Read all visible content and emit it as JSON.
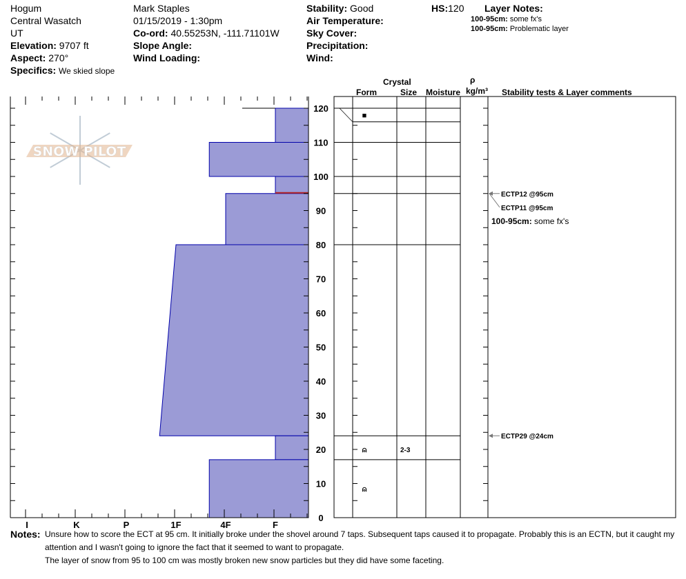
{
  "header": {
    "location": "Hogum",
    "range": "Central Wasatch",
    "state": "UT",
    "elevation_label": "Elevation:",
    "elevation": "9707 ft",
    "aspect_label": "Aspect:",
    "aspect": "270°",
    "specifics_label": "Specifics:",
    "specifics": "We skied slope",
    "observer": "Mark Staples",
    "datetime": "01/15/2019 - 1:30pm",
    "coord_label": "Co-ord:",
    "coord": "40.55253N, -111.71101W",
    "slope_label": "Slope Angle:",
    "wind_loading_label": "Wind Loading:",
    "stability_label": "Stability:",
    "stability": "Good",
    "air_temp_label": "Air Temperature:",
    "sky_label": "Sky Cover:",
    "precip_label": "Precipitation:",
    "wind_label": "Wind:",
    "hs_label": "HS:",
    "hs": "120",
    "layer_notes_label": "Layer Notes:",
    "layer_notes": [
      {
        "range": "100-95cm:",
        "text": "some fx's"
      },
      {
        "range": "100-95cm:",
        "text": "Problematic layer"
      }
    ]
  },
  "logo_text": "SNOW PILOT",
  "columns": {
    "crystal": "Crystal",
    "form": "Form",
    "size": "Size",
    "moisture": "Moisture",
    "rho": "ρ",
    "density_unit": "kg/m³",
    "comments": "Stability tests & Layer comments"
  },
  "chart_data": {
    "type": "snow-profile",
    "depth_axis": {
      "range": [
        0,
        120
      ],
      "ticks": [
        "0",
        "10",
        "20",
        "30",
        "40",
        "50",
        "60",
        "70",
        "80",
        "90",
        "100",
        "110",
        "120"
      ]
    },
    "hardness_axis": {
      "labels": [
        "I",
        "K",
        "P",
        "1F",
        "4F",
        "F"
      ],
      "index": [
        6,
        5,
        4,
        3,
        2,
        1
      ]
    },
    "layers": [
      {
        "top": 120,
        "bottom": 110,
        "hardness_top": 1,
        "hardness_bottom": 1
      },
      {
        "top": 110,
        "bottom": 100,
        "hardness_top": 2.33,
        "hardness_bottom": 2.33
      },
      {
        "top": 100,
        "bottom": 95,
        "hardness_top": 1,
        "hardness_bottom": 1
      },
      {
        "top": 95,
        "bottom": 80,
        "hardness_top": 2,
        "hardness_bottom": 2
      },
      {
        "top": 80,
        "bottom": 24,
        "hardness_top": 3.0,
        "hardness_bottom": 3.33
      },
      {
        "top": 24,
        "bottom": 17,
        "hardness_top": 1,
        "hardness_bottom": 1
      },
      {
        "top": 17,
        "bottom": 0,
        "hardness_top": 2.33,
        "hardness_bottom": 2.33
      }
    ],
    "critical_layer_depth": 95,
    "form_lines": [
      120,
      116,
      110,
      100,
      95,
      80,
      24,
      17
    ],
    "grain_forms": [
      {
        "depth": 118,
        "symbol": "■",
        "size": ""
      },
      {
        "depth": 20,
        "symbol": "⍝",
        "size": "2-3"
      },
      {
        "depth": 8.5,
        "symbol": "⍝",
        "size": ""
      }
    ],
    "tests": [
      {
        "depth": 95,
        "label": "ECTP12 @95cm",
        "offset": 0
      },
      {
        "depth": 95,
        "label": "ECTP11 @95cm",
        "offset": 1
      },
      {
        "depth": 24,
        "label": "ECTP29 @24cm",
        "offset": 0
      }
    ],
    "layer_comment": {
      "range": "100-95cm:",
      "text": "some fx's"
    }
  },
  "notes": {
    "label": "Notes:",
    "lines": [
      "Unsure how to score the ECT at 95 cm. It initially broke under the shovel around 7 taps. Subsequent taps caused it to propagate. Probably this is an ECTN, but it caught my",
      "attention and I wasn't going to ignore the fact that it seemed to want to propagate.",
      "The layer of snow from 95 to 100 cm was mostly broken new snow particles but they did have some faceting."
    ]
  },
  "colors": {
    "bar_fill": "#9b9bd6",
    "bar_stroke": "#0000aa",
    "critical": "#b22222"
  }
}
